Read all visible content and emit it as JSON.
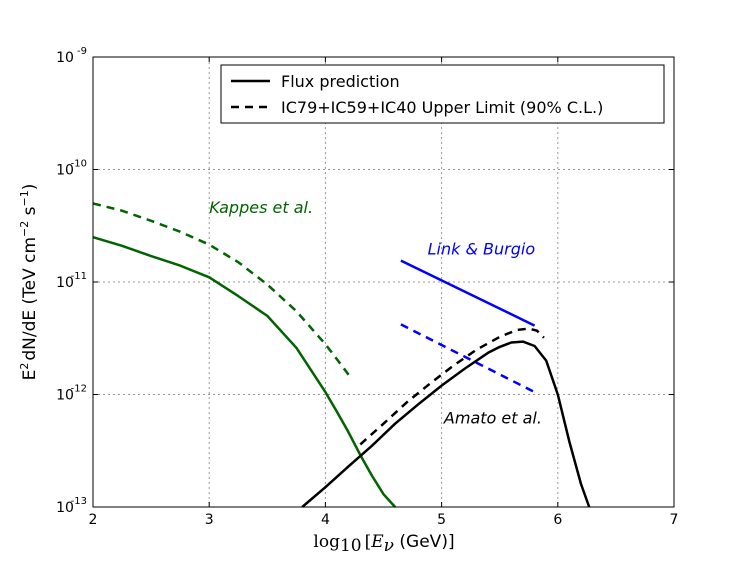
{
  "chart_data": {
    "type": "line",
    "title": "",
    "xlabel": {
      "math_main": "log",
      "math_sub": "10",
      "bracket_open": "[",
      "math_var": "E",
      "math_var_sub": "ν",
      "unit": " (GeV)]"
    },
    "ylabel": {
      "prefix": "E",
      "prefix_sup": "2",
      "main": "dN/dE (TeV cm",
      "sup1": "−2",
      "mid": " s",
      "sup2": "−1",
      "end": ")"
    },
    "xlim": [
      2,
      7
    ],
    "ylim": [
      1e-13,
      1e-09
    ],
    "yscale": "log",
    "grid": true,
    "x_ticks": [
      "2",
      "3",
      "4",
      "5",
      "6",
      "7"
    ],
    "y_ticks": [
      {
        "base": "10",
        "exp": "-13",
        "value": 1e-13
      },
      {
        "base": "10",
        "exp": "-12",
        "value": 1e-12
      },
      {
        "base": "10",
        "exp": "-11",
        "value": 1e-11
      },
      {
        "base": "10",
        "exp": "-10",
        "value": 1e-10
      },
      {
        "base": "10",
        "exp": "-9",
        "value": 1e-09
      }
    ],
    "legend": {
      "placement": "top-right",
      "entries": [
        {
          "label": "Flux prediction",
          "style": "solid",
          "color": "#000000"
        },
        {
          "label": "IC79+IC59+IC40 Upper Limit (90% C.L.)",
          "style": "dashed",
          "color": "#000000"
        }
      ]
    },
    "annotations": [
      {
        "text": "Kappes et al.",
        "x": 3.0,
        "y": 4.1e-11,
        "color": "#006400"
      },
      {
        "text": "Link & Burgio",
        "x": 4.88,
        "y": 1.75e-11,
        "color": "#0000ff"
      },
      {
        "text": "Amato et al.",
        "x": 5.02,
        "y": 5.5e-13,
        "color": "#000000"
      }
    ],
    "series": [
      {
        "style": "solid",
        "color": "#006400",
        "x": [
          2.0,
          2.25,
          2.5,
          2.75,
          3.0,
          3.25,
          3.5,
          3.75,
          4.0,
          4.1,
          4.2,
          4.3,
          4.4,
          4.5,
          4.6
        ],
        "y": [
          2.5e-11,
          2.1e-11,
          1.7e-11,
          1.4e-11,
          1.1e-11,
          7.5e-12,
          5e-12,
          2.6e-12,
          1.05e-12,
          7e-13,
          4.6e-13,
          2.9e-13,
          1.9e-13,
          1.3e-13,
          1e-13
        ]
      },
      {
        "style": "dashed",
        "color": "#006400",
        "x": [
          2.0,
          2.25,
          2.5,
          2.75,
          3.0,
          3.25,
          3.5,
          3.75,
          4.0,
          4.1,
          4.2
        ],
        "y": [
          5e-11,
          4.3e-11,
          3.5e-11,
          2.8e-11,
          2.15e-11,
          1.5e-11,
          9.5e-12,
          5.5e-12,
          2.8e-12,
          2.05e-12,
          1.5e-12
        ]
      },
      {
        "style": "solid",
        "color": "#0000ff",
        "x": [
          4.65,
          5.8
        ],
        "y": [
          1.55e-11,
          4.1e-12
        ]
      },
      {
        "style": "dashed",
        "color": "#0000ff",
        "x": [
          4.65,
          5.8
        ],
        "y": [
          4.2e-12,
          1.05e-12
        ]
      },
      {
        "style": "solid",
        "color": "#000000",
        "x": [
          3.8,
          4.0,
          4.2,
          4.4,
          4.6,
          4.8,
          5.0,
          5.2,
          5.4,
          5.5,
          5.6,
          5.7,
          5.8,
          5.9,
          6.0,
          6.1,
          6.2,
          6.27
        ],
        "y": [
          1e-13,
          1.5e-13,
          2.3e-13,
          3.5e-13,
          5.5e-13,
          8.2e-13,
          1.2e-12,
          1.7e-12,
          2.35e-12,
          2.65e-12,
          2.9e-12,
          2.95e-12,
          2.7e-12,
          2e-12,
          1e-12,
          3.8e-13,
          1.6e-13,
          1e-13
        ]
      },
      {
        "style": "dashed",
        "color": "#000000",
        "x": [
          4.3,
          4.5,
          4.7,
          4.9,
          5.1,
          5.3,
          5.5,
          5.65,
          5.75,
          5.82,
          5.88
        ],
        "y": [
          3.6e-13,
          5.5e-13,
          8.5e-13,
          1.25e-12,
          1.8e-12,
          2.5e-12,
          3.25e-12,
          3.75e-12,
          3.85e-12,
          3.7e-12,
          3.2e-12
        ]
      }
    ]
  }
}
